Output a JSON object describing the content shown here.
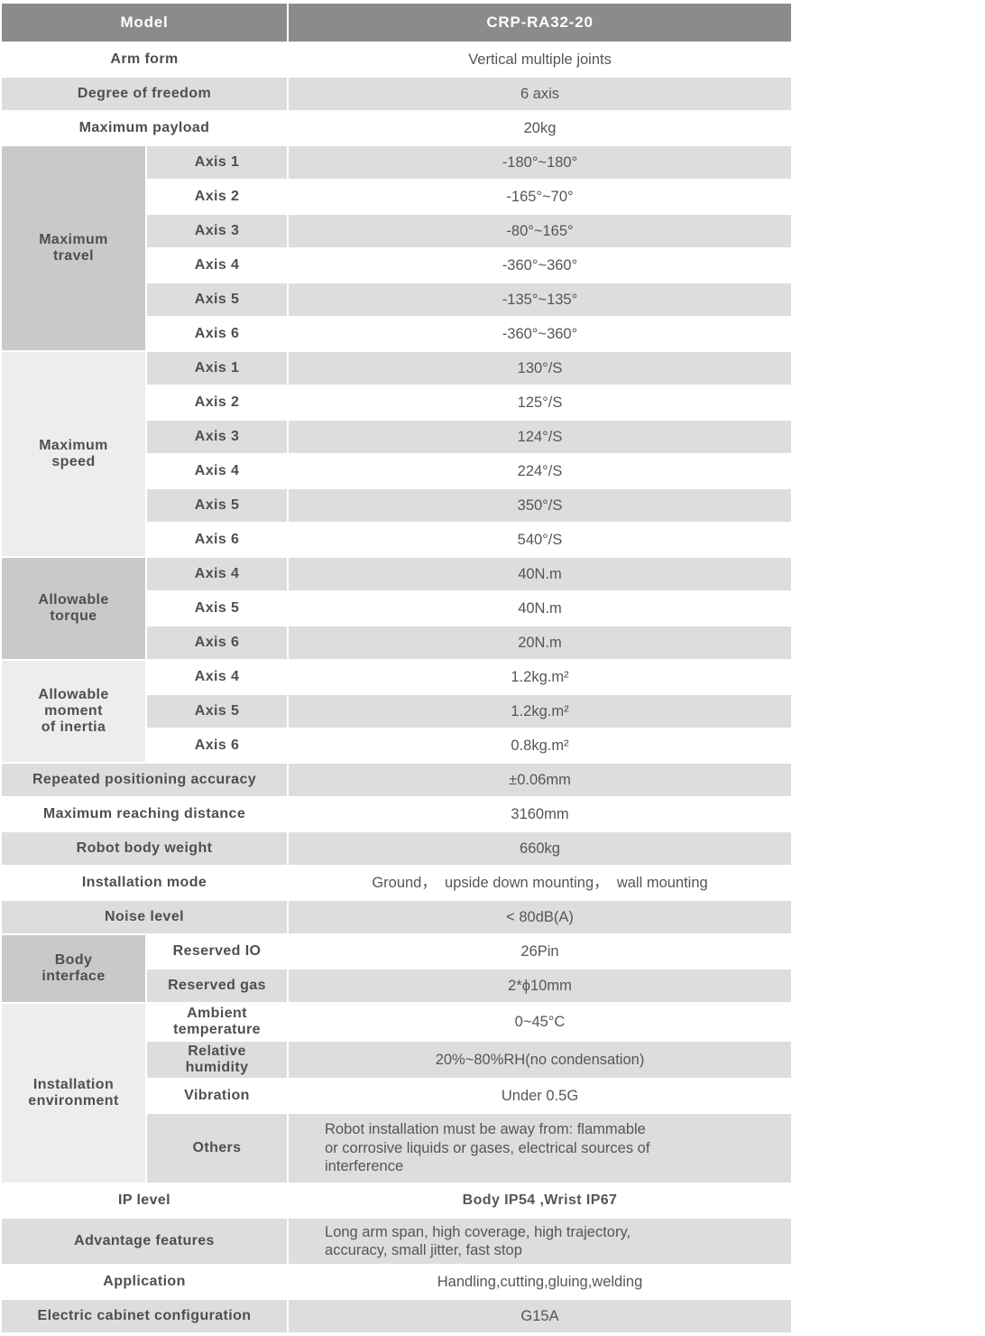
{
  "table": {
    "header": {
      "label": "Model",
      "value": "CRP-RA32-20"
    },
    "rows": {
      "arm_form": {
        "label": "Arm form",
        "value": "Vertical multiple joints"
      },
      "degree_of_freedom": {
        "label": "Degree of freedom",
        "value": "6 axis"
      },
      "maximum_payload": {
        "label": "Maximum payload",
        "value": "20kg"
      },
      "repeated_positioning_accuracy": {
        "label": "Repeated positioning accuracy",
        "value": "±0.06mm"
      },
      "maximum_reaching_distance": {
        "label": "Maximum reaching distance",
        "value": "3160mm"
      },
      "robot_body_weight": {
        "label": "Robot body weight",
        "value": "660kg"
      },
      "installation_mode": {
        "label": "Installation mode",
        "value": "Ground，  upside down mounting，  wall mounting"
      },
      "noise_level": {
        "label": "Noise level",
        "value": "< 80dB(A)"
      },
      "ip_level": {
        "label": "IP level",
        "value": "Body IP54 ,Wrist IP67"
      },
      "advantage_features": {
        "label": "Advantage features",
        "value": "Long arm span, high coverage, high trajectory,\naccuracy, small jitter, fast stop"
      },
      "application": {
        "label": "Application",
        "value": "Handling,cutting,gluing,welding"
      },
      "electric_cabinet_configuration": {
        "label": "Electric cabinet configuration",
        "value": "G15A"
      }
    },
    "groups": {
      "maximum_travel": {
        "label": "Maximum\ntravel",
        "rows": [
          {
            "label": "Axis 1",
            "value": "-180°~180°"
          },
          {
            "label": "Axis 2",
            "value": "-165°~70°"
          },
          {
            "label": "Axis 3",
            "value": "-80°~165°"
          },
          {
            "label": "Axis 4",
            "value": "-360°~360°"
          },
          {
            "label": "Axis 5",
            "value": "-135°~135°"
          },
          {
            "label": "Axis 6",
            "value": "-360°~360°"
          }
        ]
      },
      "maximum_speed": {
        "label": "Maximum\nspeed",
        "rows": [
          {
            "label": "Axis 1",
            "value": "130°/S"
          },
          {
            "label": "Axis 2",
            "value": "125°/S"
          },
          {
            "label": "Axis 3",
            "value": "124°/S"
          },
          {
            "label": "Axis 4",
            "value": "224°/S"
          },
          {
            "label": "Axis 5",
            "value": "350°/S"
          },
          {
            "label": "Axis 6",
            "value": "540°/S"
          }
        ]
      },
      "allowable_torque": {
        "label": "Allowable\ntorque",
        "rows": [
          {
            "label": "Axis 4",
            "value": "40N.m"
          },
          {
            "label": "Axis 5",
            "value": "40N.m"
          },
          {
            "label": "Axis 6",
            "value": "20N.m"
          }
        ]
      },
      "allowable_moment_of_inertia": {
        "label": "Allowable\nmoment\nof inertia",
        "rows": [
          {
            "label": "Axis 4",
            "value": "1.2kg.m²"
          },
          {
            "label": "Axis 5",
            "value": "1.2kg.m²"
          },
          {
            "label": "Axis 6",
            "value": "0.8kg.m²"
          }
        ]
      },
      "body_interface": {
        "label": "Body\ninterface",
        "rows": [
          {
            "label": "Reserved IO",
            "value": "26Pin"
          },
          {
            "label": "Reserved gas",
            "value": "2*ϕ10mm"
          }
        ]
      },
      "installation_environment": {
        "label": "Installation\nenvironment",
        "rows": [
          {
            "label": "Ambient\ntemperature",
            "value": "0~45°C"
          },
          {
            "label": "Relative\nhumidity",
            "value": "20%~80%RH(no condensation)"
          },
          {
            "label": "Vibration",
            "value": "Under 0.5G"
          },
          {
            "label": "Others",
            "value": "Robot installation must be away from: flammable\nor corrosive liquids or gases, electrical sources of\ninterference"
          }
        ]
      }
    },
    "colors": {
      "header_bg": "#8a8b8b",
      "row_gray": "#dcdddd",
      "group_dark": "#c8c9c9",
      "group_light": "#ededee",
      "label_text": "#4e4f52",
      "value_text": "#55565a"
    }
  }
}
